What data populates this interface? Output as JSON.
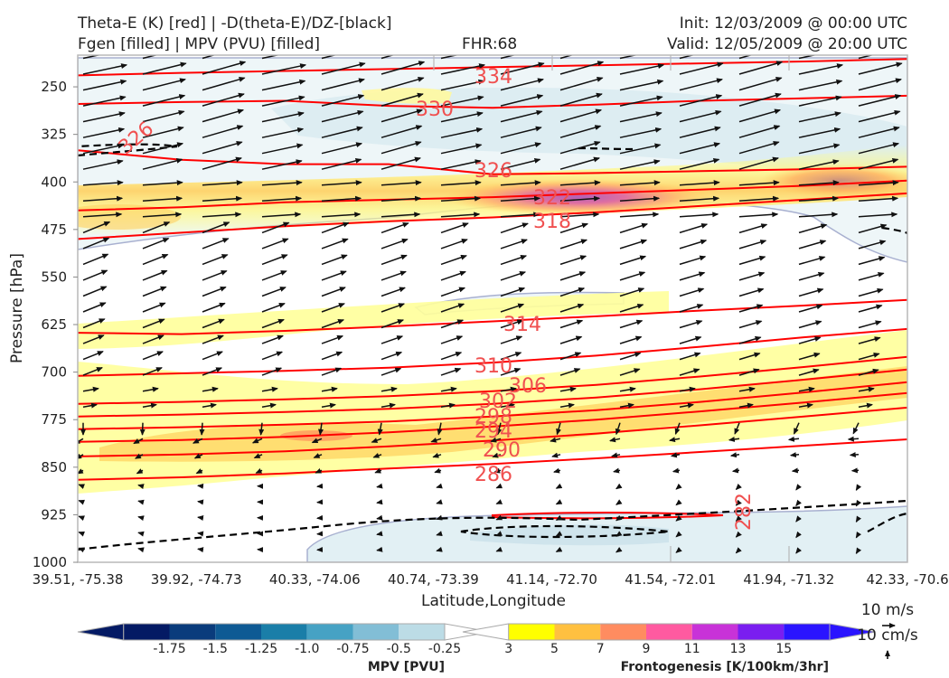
{
  "header": {
    "line1_left": "Theta-E (K) [red] | -D(theta-E)/DZ-[black]",
    "line2_left": "Fgen [filled] | MPV (PVU) [filled]",
    "fhr": "FHR:68",
    "init": "Init: 12/03/2009 @ 00:00 UTC",
    "valid": "Valid: 12/05/2009 @ 20:00 UTC"
  },
  "colors": {
    "theta_e": "#ff0000",
    "theta_e_label": "#f05050",
    "dthetae_dz": "#000000",
    "mpv_outline": "#a8b0d0",
    "frame": "#b8b8b8"
  },
  "chart_data": {
    "type": "cross-section",
    "xlabel": "Latitude,Longitude",
    "ylabel": "Pressure [hPa]",
    "x_ticks": [
      "39.51, -75.38",
      "39.92, -74.73",
      "40.33, -74.06",
      "40.74, -73.39",
      "41.14, -72.70",
      "41.54, -72.01",
      "41.94, -71.32",
      "42.33, -70.6"
    ],
    "y_ticks": [
      250,
      325,
      400,
      475,
      550,
      625,
      700,
      775,
      850,
      925,
      1000
    ],
    "ylim": [
      1000,
      200
    ],
    "grid": false,
    "theta_e_contours": [
      {
        "value": 334,
        "label": "334",
        "p": [
          232,
          228,
          225,
          222,
          219,
          216,
          213,
          210,
          206
        ]
      },
      {
        "value": 330,
        "label": "330",
        "p": [
          277,
          274,
          272,
          280,
          283,
          278,
          272,
          268,
          264
        ]
      },
      {
        "value": 326,
        "label": "326",
        "p": [
          350,
          365,
          372,
          372,
          388,
          386,
          383,
          380,
          376
        ]
      },
      {
        "value": 322,
        "label": "322",
        "p": [
          445,
          440,
          432,
          428,
          424,
          418,
          412,
          406,
          398
        ]
      },
      {
        "value": 318,
        "label": "318",
        "p": [
          490,
          480,
          470,
          462,
          456,
          448,
          438,
          428,
          418
        ]
      },
      {
        "value": 314,
        "label": "314",
        "p": [
          638,
          640,
          635,
          628,
          620,
          612,
          603,
          595,
          586
        ]
      },
      {
        "value": 310,
        "label": "310",
        "p": [
          706,
          702,
          698,
          693,
          685,
          674,
          660,
          645,
          632
        ]
      },
      {
        "value": 306,
        "label": "306",
        "p": [
          750,
          747,
          743,
          738,
          730,
          720,
          707,
          692,
          676
        ]
      },
      {
        "value": 302,
        "label": "302",
        "p": [
          770,
          767,
          763,
          758,
          750,
          740,
          727,
          712,
          696
        ]
      },
      {
        "value": 298,
        "label": "298",
        "p": [
          790,
          787,
          783,
          778,
          770,
          760,
          747,
          732,
          716
        ]
      },
      {
        "value": 294,
        "label": "294",
        "p": [
          810,
          807,
          802,
          795,
          786,
          775,
          762,
          748,
          733
        ]
      },
      {
        "value": 290,
        "label": "290",
        "p": [
          833,
          830,
          825,
          817,
          808,
          797,
          784,
          770,
          756
        ]
      },
      {
        "value": 286,
        "label": "286",
        "p": [
          870,
          866,
          860,
          852,
          845,
          836,
          826,
          816,
          806
        ]
      },
      {
        "value": 282,
        "label": "282",
        "p": []
      }
    ],
    "fgen_colorbar": {
      "label": "Frontogenesis [K/100km/3hr]",
      "ticks": [
        "3",
        "5",
        "7",
        "9",
        "11",
        "13",
        "15"
      ],
      "colors": [
        "#ffff00",
        "#ffc040",
        "#ff8c60",
        "#ff5aa0",
        "#c832d8",
        "#7a1ef0",
        "#2a14ff"
      ]
    },
    "mpv_colorbar": {
      "label": "MPV [PVU]",
      "ticks": [
        "-1.75",
        "-1.5",
        "-1.25",
        "-1.0",
        "-0.75",
        "-0.5",
        "-0.25"
      ],
      "colors": [
        "#041a64",
        "#0a3c7c",
        "#0e5a94",
        "#1a7ea8",
        "#46a2c4",
        "#82bed6",
        "#bcdce6"
      ]
    },
    "vector_ref": {
      "label1": "10 m/s",
      "label2": "10 cm/s"
    }
  }
}
